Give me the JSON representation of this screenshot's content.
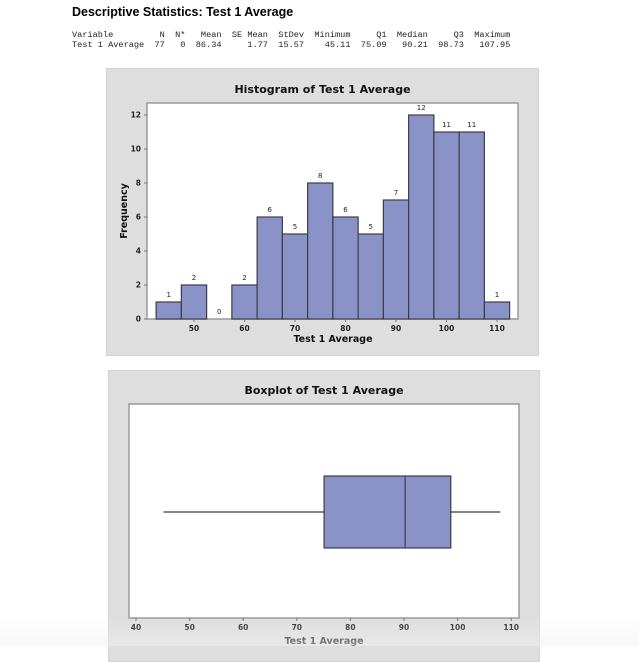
{
  "header": {
    "title": "Descriptive Statistics: Test 1 Average"
  },
  "stats_table": {
    "columns": [
      "Variable",
      "N",
      "N*",
      "Mean",
      "SE Mean",
      "StDev",
      "Minimum",
      "Q1",
      "Median",
      "Q3",
      "Maximum"
    ],
    "rows": [
      [
        "Test 1 Average",
        "77",
        "0",
        "86.34",
        "1.77",
        "15.57",
        "45.11",
        "75.09",
        "90.21",
        "98.73",
        "107.95"
      ]
    ],
    "header_line": "Variable         N  N*   Mean  SE Mean  StDev  Minimum     Q1  Median     Q3  Maximum",
    "row_line": "Test 1 Average  77   0  86.34     1.77  15.57    45.11  75.09   90.21  98.73   107.95"
  },
  "colors": {
    "bar_fill": "#8a93c8",
    "bar_stroke": "#3c3c46",
    "panel_bg": "#dedede",
    "plot_bg": "#ffffff"
  },
  "chart_data": [
    {
      "type": "bar",
      "title": "Histogram of Test 1 Average",
      "xlabel": "Test 1 Average",
      "ylabel": "Frequency",
      "bin_width": 5,
      "categories": [
        45,
        50,
        55,
        60,
        65,
        70,
        75,
        80,
        85,
        90,
        95,
        100,
        105,
        110
      ],
      "values": [
        1,
        2,
        0,
        2,
        6,
        5,
        8,
        6,
        5,
        7,
        12,
        11,
        11,
        1
      ],
      "x_ticks": [
        50,
        60,
        70,
        80,
        90,
        100,
        110
      ],
      "y_ticks": [
        0,
        2,
        4,
        6,
        8,
        10,
        12
      ],
      "ylim": [
        0,
        12.9
      ],
      "xlim": [
        40.8,
        114.8
      ],
      "data_labels": true,
      "grid": false
    },
    {
      "type": "boxplot",
      "title": "Boxplot of Test 1 Average",
      "xlabel": "Test 1 Average",
      "whisker_low": 45.11,
      "q1": 75.09,
      "median": 90.21,
      "q3": 98.73,
      "whisker_high": 107.95,
      "x_ticks": [
        40,
        50,
        60,
        70,
        80,
        90,
        100,
        110
      ],
      "xlim": [
        38.7,
        111.4
      ],
      "grid": false
    }
  ]
}
